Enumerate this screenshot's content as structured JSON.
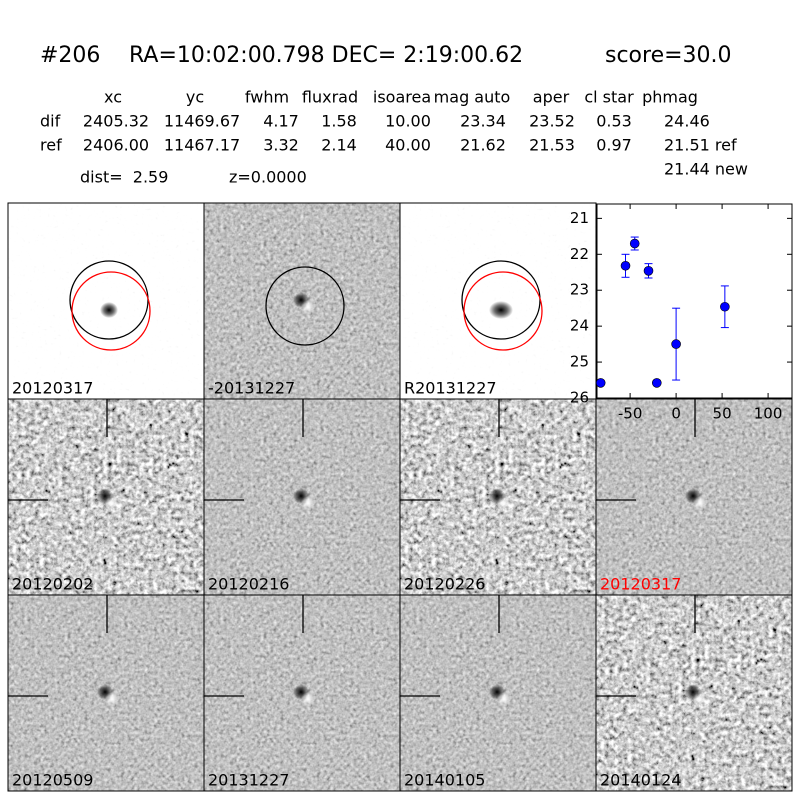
{
  "header": {
    "id": "#206",
    "coords": "RA=10:02:00.798 DEC= 2:19:00.62",
    "score": "score=30.0"
  },
  "table": {
    "columns": [
      "xc",
      "yc",
      "fwhm",
      "fluxrad",
      "isoarea",
      "mag auto",
      "aper",
      "cl star",
      "phmag"
    ],
    "rows": [
      {
        "label": "dif",
        "cells": [
          "2405.32",
          "11469.67",
          "4.17",
          "1.58",
          "10.00",
          "23.34",
          "23.52",
          "0.53",
          "24.46"
        ]
      },
      {
        "label": "ref",
        "cells": [
          "2406.00",
          "11467.17",
          "3.32",
          "2.14",
          "40.00",
          "21.62",
          "21.53",
          "0.97",
          "21.51 ref"
        ]
      }
    ],
    "extra": "21.44 new",
    "dist": "dist=  2.59",
    "z": "z=0.0000"
  },
  "stamps": [
    {
      "label": "20120317"
    },
    {
      "label": "-20131227"
    },
    {
      "label": "R20131227"
    },
    {
      "label": "20120202"
    },
    {
      "label": "20120216"
    },
    {
      "label": "20120226"
    },
    {
      "label": "20120317",
      "label_color": "#ff0000"
    },
    {
      "label": "20120509"
    },
    {
      "label": "20131227"
    },
    {
      "label": "20140105"
    },
    {
      "label": "20140124"
    }
  ],
  "chart_data": {
    "type": "scatter",
    "color": "#0000ff",
    "x": [
      -82,
      -55,
      -45,
      -30,
      -21,
      0,
      53
    ],
    "values": [
      25.58,
      22.32,
      21.7,
      22.46,
      25.58,
      24.5,
      23.46
    ],
    "errors": [
      0.05,
      0.32,
      0.18,
      0.2,
      0.05,
      1.0,
      0.58
    ],
    "xlim": [
      -86,
      126
    ],
    "xticks": [
      -50,
      0,
      50,
      100
    ],
    "ylim": [
      26,
      20.6
    ],
    "yticks": [
      21,
      22,
      23,
      24,
      25,
      26
    ]
  }
}
